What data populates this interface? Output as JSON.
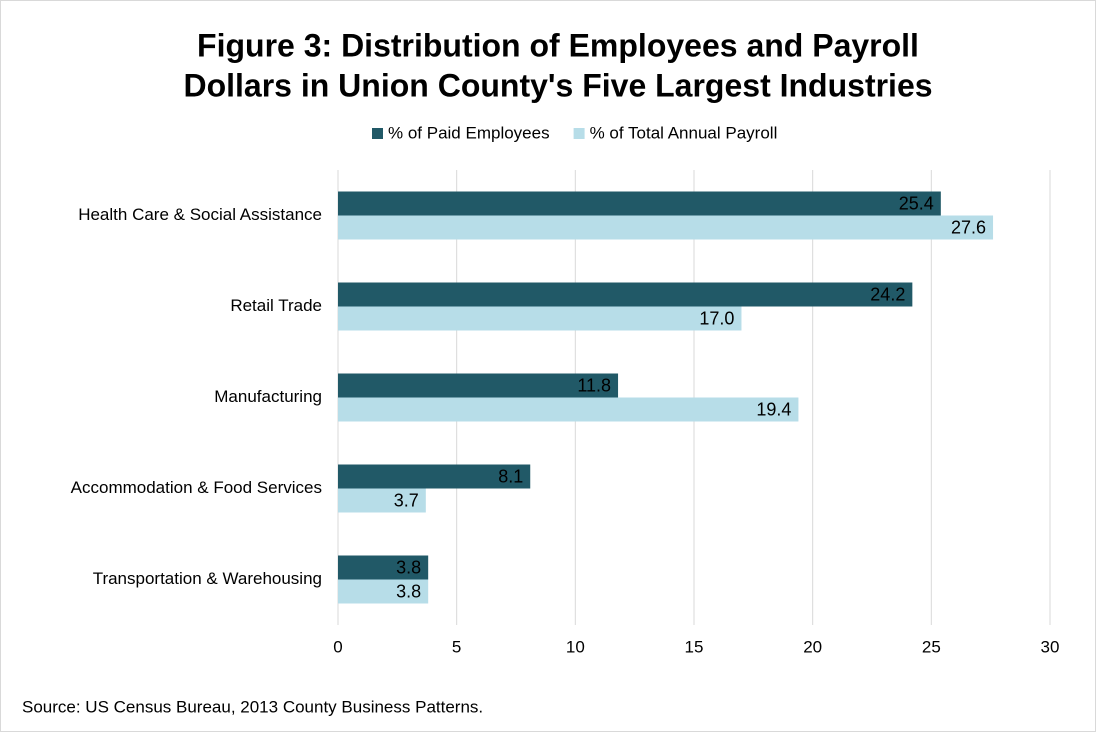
{
  "chart_data": {
    "type": "hbar",
    "title": [
      "Figure 3: Distribution of Employees and Payroll",
      "Dollars in Union County's Five Largest Industries"
    ],
    "categories": [
      "Health Care & Social Assistance",
      "Retail Trade",
      "Manufacturing",
      "Accommodation & Food Services",
      "Transportation & Warehousing"
    ],
    "series": [
      {
        "name": "% of Paid Employees",
        "color": "#215967",
        "values": [
          25.4,
          24.2,
          11.8,
          8.1,
          3.8
        ],
        "value_labels": [
          "25.4",
          "24.2",
          "11.8",
          "8.1",
          "3.8"
        ]
      },
      {
        "name": "% of Total Annual Payroll",
        "color": "#b7dde8",
        "values": [
          27.6,
          17.0,
          19.4,
          3.7,
          3.8
        ],
        "value_labels": [
          "27.6",
          "17.0",
          "19.4",
          "3.7",
          "3.8"
        ]
      }
    ],
    "xlim": [
      0,
      30
    ],
    "xticks": [
      0,
      5,
      10,
      15,
      20,
      25,
      30
    ],
    "grid": true,
    "legend": "top",
    "source": "Source: US Census Bureau, 2013 County Business Patterns."
  }
}
